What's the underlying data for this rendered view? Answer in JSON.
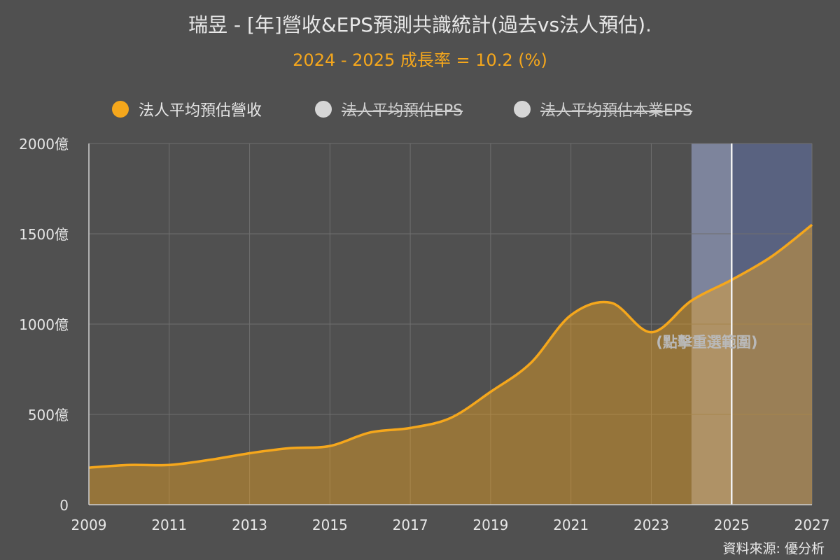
{
  "title": "瑞昱 - [年]營收&EPS預測共識統計(過去vs法人預估).",
  "subtitle": "2024 - 2025 成長率 = 10.2 (%)",
  "legend": [
    {
      "label": "法人平均預估營收",
      "color": "#f5a71c",
      "active": true
    },
    {
      "label": "法人平均預估EPS",
      "color": "#d6d6d6",
      "active": false
    },
    {
      "label": "法人平均預估本業EPS",
      "color": "#d6d6d6",
      "active": false
    }
  ],
  "reset_label": "(點擊重選範圍)",
  "source": "資料來源: 優分析",
  "colors": {
    "line": "#f5a71c",
    "background": "#505050",
    "subtitle": "#f5a71c"
  },
  "chart_data": {
    "type": "area",
    "title": "瑞昱 - [年]營收&EPS預測共識統計(過去vs法人預估).",
    "subtitle": "2024 - 2025 成長率 = 10.2 (%)",
    "xlim": [
      2009,
      2027
    ],
    "ylim": [
      0,
      2000
    ],
    "y_unit_suffix": "億",
    "x_ticks": [
      "2009",
      "2011",
      "2013",
      "2015",
      "2017",
      "2019",
      "2021",
      "2023",
      "2025",
      "2027"
    ],
    "y_ticks": [
      "0",
      "500億",
      "1000億",
      "1500億",
      "2000億"
    ],
    "y_tick_values": [
      0,
      500,
      1000,
      1500,
      2000
    ],
    "grid": true,
    "legend_position": "top-center",
    "series": [
      {
        "name": "法人平均預估營收",
        "x": [
          2009,
          2010,
          2011,
          2012,
          2013,
          2014,
          2015,
          2016,
          2017,
          2018,
          2019,
          2020,
          2021,
          2022,
          2023,
          2024,
          2025,
          2026,
          2027
        ],
        "values": [
          205,
          220,
          220,
          248,
          285,
          313,
          325,
          400,
          425,
          480,
          625,
          785,
          1050,
          1118,
          955,
          1130,
          1245,
          1375,
          1550
        ]
      }
    ],
    "forecast_region": {
      "from": 2024,
      "to": 2027,
      "current": 2025
    }
  }
}
